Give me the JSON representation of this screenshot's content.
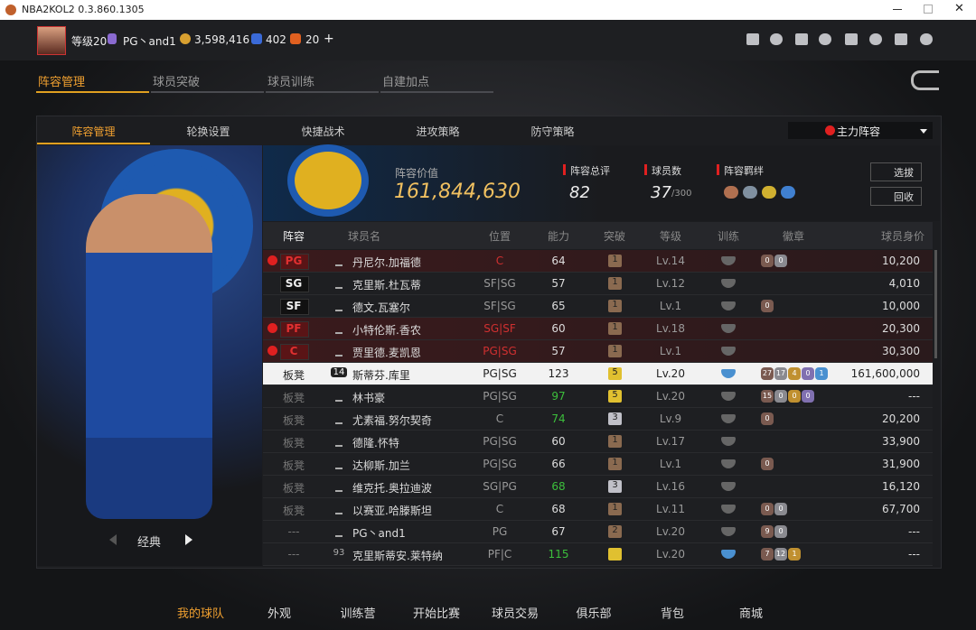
{
  "window": {
    "title": "NBA2KOL2 0.3.860.1305"
  },
  "header": {
    "level": "等级20",
    "player": "PG丶and1",
    "coins": "3,598,416",
    "stars": "402",
    "tokens": "20",
    "plus": "+"
  },
  "tabs": [
    "阵容管理",
    "球员突破",
    "球员训练",
    "自建加点"
  ],
  "subtabs": [
    "阵容管理",
    "轮换设置",
    "快捷战术",
    "进攻策略",
    "防守策略"
  ],
  "lineup_select": "主力阵容",
  "summary": {
    "value_label": "阵容价值",
    "value": "161,844,630",
    "rating_label": "阵容总评",
    "rating": "82",
    "count_label": "球员数",
    "count": "37",
    "count_max": "/300",
    "bond_label": "阵容羁绊"
  },
  "buttons": [
    "选拔",
    "回收"
  ],
  "card": {
    "style": "经典"
  },
  "table": {
    "columns": [
      "阵容",
      "球员名",
      "位置",
      "能力",
      "突破",
      "等级",
      "训练",
      "徽章",
      "球员身价"
    ],
    "rows": [
      {
        "slot": "PG",
        "name": "丹尼尔.加福德",
        "position": "C",
        "ability": 64,
        "breakthrough": 1,
        "level": "Lv.14",
        "badges": [
          0,
          0
        ],
        "price": "10,200",
        "alert": true
      },
      {
        "slot": "SG",
        "name": "克里斯.杜瓦蒂",
        "position": "SF|SG",
        "ability": 57,
        "breakthrough": 1,
        "level": "Lv.12",
        "badges": [],
        "price": "4,010"
      },
      {
        "slot": "SF",
        "name": "德文.瓦塞尔",
        "position": "SF|SG",
        "ability": 65,
        "breakthrough": 1,
        "level": "Lv.1",
        "badges": [
          0
        ],
        "price": "10,000"
      },
      {
        "slot": "PF",
        "name": "小特伦斯.香农",
        "position": "SG|SF",
        "ability": 60,
        "breakthrough": 1,
        "level": "Lv.18",
        "badges": [],
        "price": "20,300",
        "alert": true
      },
      {
        "slot": "C",
        "name": "贾里德.麦凯恩",
        "position": "PG|SG",
        "ability": 57,
        "breakthrough": 1,
        "level": "Lv.1",
        "badges": [],
        "price": "30,300",
        "alert": true
      },
      {
        "slot": "板凳",
        "jersey": "14",
        "name": "斯蒂芬.库里",
        "position": "PG|SG",
        "ability": 123,
        "breakthrough": 5,
        "level": "Lv.20",
        "badges": [
          27,
          17,
          4,
          0,
          1
        ],
        "price": "161,600,000",
        "selected": true
      },
      {
        "slot": "板凳",
        "name": "林书豪",
        "position": "PG|SG",
        "ability": 97,
        "ability_color": "#3cbf3c",
        "breakthrough": 5,
        "level": "Lv.20",
        "badges": [
          15,
          0,
          0,
          0
        ],
        "price": "---"
      },
      {
        "slot": "板凳",
        "name": "尤素福.努尔契奇",
        "position": "C",
        "ability": 74,
        "ability_color": "#3cbf3c",
        "breakthrough": 3,
        "level": "Lv.9",
        "badges": [
          0
        ],
        "price": "20,200"
      },
      {
        "slot": "板凳",
        "name": "德隆.怀特",
        "position": "PG|SG",
        "ability": 60,
        "breakthrough": 1,
        "level": "Lv.17",
        "badges": [],
        "price": "33,900"
      },
      {
        "slot": "板凳",
        "name": "达柳斯.加兰",
        "position": "PG|SG",
        "ability": 66,
        "breakthrough": 1,
        "level": "Lv.1",
        "badges": [
          0
        ],
        "price": "31,900"
      },
      {
        "slot": "板凳",
        "name": "维克托.奥拉迪波",
        "position": "SG|PG",
        "ability": 68,
        "ability_color": "#3cbf3c",
        "breakthrough": 3,
        "level": "Lv.16",
        "badges": [],
        "price": "16,120"
      },
      {
        "slot": "板凳",
        "name": "以赛亚.哈滕斯坦",
        "position": "C",
        "ability": 68,
        "breakthrough": 1,
        "level": "Lv.11",
        "badges": [
          0,
          0
        ],
        "price": "67,700"
      },
      {
        "slot": "---",
        "name": "PG丶and1",
        "position": "PG",
        "ability": 67,
        "breakthrough": 2,
        "level": "Lv.20",
        "badges": [
          9,
          0
        ],
        "price": "---"
      },
      {
        "slot": "---",
        "jersey": "93",
        "name": "克里斯蒂安.莱特纳",
        "position": "PF|C",
        "ability": 115,
        "ability_color": "#3cbf3c",
        "level": "Lv.20",
        "badges": [
          7,
          12,
          1
        ],
        "price": "---"
      }
    ]
  },
  "bottom_nav": [
    "我的球队",
    "外观",
    "训练营",
    "开始比赛",
    "球员交易",
    "俱乐部",
    "背包",
    "商城"
  ]
}
